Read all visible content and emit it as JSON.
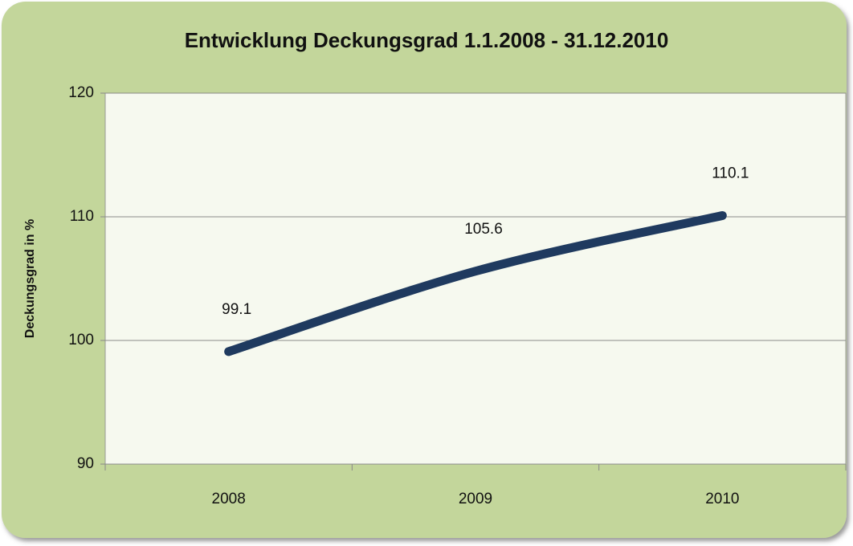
{
  "chart_data": {
    "type": "line",
    "title": "Entwicklung Deckungsgrad 1.1.2008 - 31.12.2010",
    "y_label": "Deckungsgrad in %",
    "categories": [
      "2008",
      "2009",
      "2010"
    ],
    "series": [
      {
        "name": "Deckungsgrad",
        "color": "#1f3a5f",
        "values": [
          99.1,
          105.6,
          110.1
        ]
      }
    ],
    "ylim": [
      90,
      120
    ],
    "yticks": [
      90,
      100,
      110,
      120
    ],
    "grid": true,
    "data_labels": true
  }
}
